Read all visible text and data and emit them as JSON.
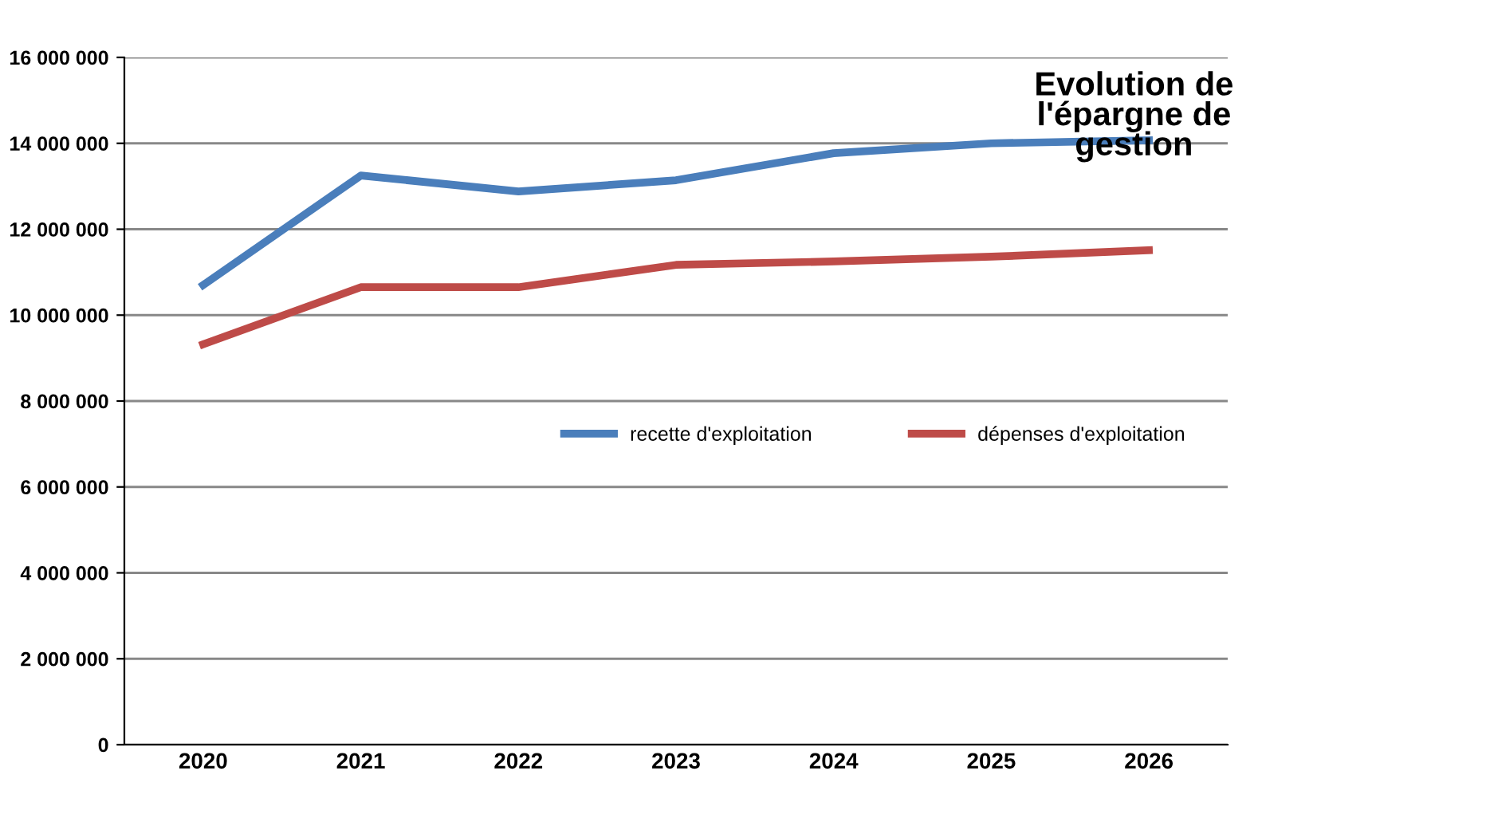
{
  "chart_data": {
    "type": "line",
    "title": "Evolution de l'épargne de gestion",
    "categories": [
      "2020",
      "2021",
      "2022",
      "2023",
      "2024",
      "2025",
      "2026"
    ],
    "series": [
      {
        "name": "recette d'exploitation",
        "color": "#4a7ebb",
        "values": [
          10700000,
          13250000,
          12880000,
          13140000,
          13770000,
          14000000,
          14070000
        ]
      },
      {
        "name": "dépenses d'exploitation",
        "color": "#be4b48",
        "values": [
          9320000,
          10650000,
          10650000,
          11170000,
          11250000,
          11360000,
          11510000
        ]
      }
    ],
    "ylim": [
      0,
      16000000
    ],
    "yticks": [
      {
        "value": 0,
        "label": "0"
      },
      {
        "value": 2000000,
        "label": "2 000 000"
      },
      {
        "value": 4000000,
        "label": "4 000 000"
      },
      {
        "value": 6000000,
        "label": "6 000 000"
      },
      {
        "value": 8000000,
        "label": "8 000 000"
      },
      {
        "value": 10000000,
        "label": "10 000 000"
      },
      {
        "value": 12000000,
        "label": "12 000 000"
      },
      {
        "value": 14000000,
        "label": "14 000 000"
      },
      {
        "value": 16000000,
        "label": "16 000 000"
      }
    ],
    "grid": "y",
    "legend": "right",
    "marker": "none",
    "line_style": "solid"
  }
}
